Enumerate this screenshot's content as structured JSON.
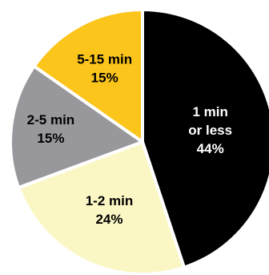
{
  "chart_data": {
    "type": "pie",
    "title": "",
    "start_angle_deg": 0,
    "direction": "clockwise",
    "slices": [
      {
        "name_lines": [
          "1 min",
          "or less"
        ],
        "value": 44,
        "value_label": "44%",
        "color": "#000000",
        "label_color": "#ffffff"
      },
      {
        "name_lines": [
          "1-2 min"
        ],
        "value": 24,
        "value_label": "24%",
        "color": "#fbf7c5",
        "label_color": "#000000"
      },
      {
        "name_lines": [
          "2-5 min"
        ],
        "value": 15,
        "value_label": "15%",
        "color": "#98989c",
        "label_color": "#000000"
      },
      {
        "name_lines": [
          "5-15 min"
        ],
        "value": 15,
        "value_label": "15%",
        "color": "#fcc51b",
        "label_color": "#000000"
      }
    ]
  }
}
